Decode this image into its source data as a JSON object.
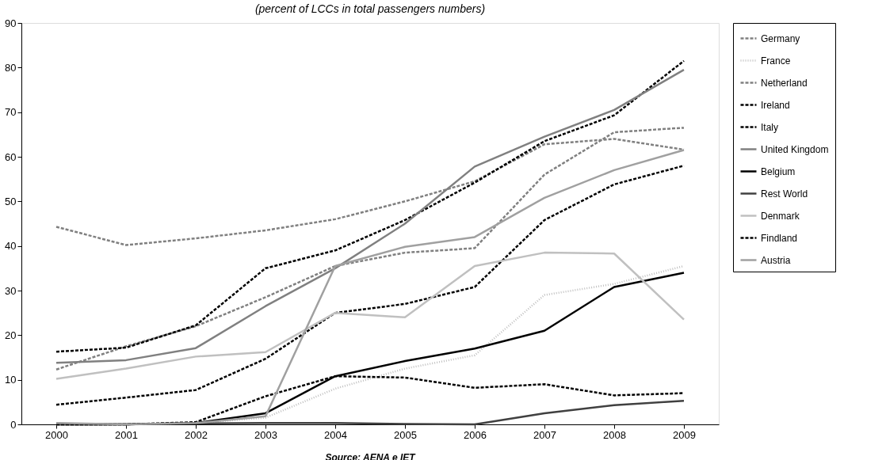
{
  "chart_data": {
    "type": "line",
    "title": "(percent of LCCs in total passengers numbers)",
    "categories": [
      "2000",
      "2001",
      "2002",
      "2003",
      "2004",
      "2005",
      "2006",
      "2007",
      "2008",
      "2009"
    ],
    "ylim": [
      0,
      90
    ],
    "yticks": [
      0,
      10,
      20,
      30,
      40,
      50,
      60,
      70,
      80,
      90
    ],
    "grid": false,
    "legend": "right",
    "marker": "none",
    "annotations": [
      "Source: AENA e IET"
    ],
    "series": [
      {
        "name": "Germany",
        "color": "#808080",
        "line_style": "dashed",
        "values": [
          12.3,
          17.5,
          22,
          28.5,
          35.5,
          38.5,
          39.5,
          56,
          65.5,
          66.5
        ]
      },
      {
        "name": "France",
        "color": "#c0c0c0",
        "line_style": "dotted",
        "values": [
          0,
          0,
          0.3,
          1.5,
          8,
          12.5,
          15.5,
          29,
          31.5,
          35.5
        ]
      },
      {
        "name": "Netherland",
        "color": "#808080",
        "line_style": "dashed",
        "values": [
          44.3,
          40.2,
          41.7,
          43.5,
          46,
          50,
          54.5,
          62.8,
          64,
          61.6
        ]
      },
      {
        "name": "Ireland",
        "color": "#000000",
        "line_style": "dashed",
        "values": [
          16.3,
          17.2,
          22.2,
          35,
          39,
          45.8,
          54.2,
          63.5,
          69.3,
          81.5
        ]
      },
      {
        "name": "Italy",
        "color": "#000000",
        "line_style": "dashed",
        "values": [
          4.4,
          6,
          7.7,
          14.7,
          25,
          27,
          30.8,
          45.8,
          53.8,
          58
        ]
      },
      {
        "name": "United Kingdom",
        "color": "#808080",
        "line_style": "solid",
        "values": [
          13.8,
          14.4,
          17.1,
          26.5,
          35,
          45,
          57.8,
          64.5,
          70.5,
          79.5
        ]
      },
      {
        "name": "Belgium",
        "color": "#000000",
        "line_style": "solid",
        "values": [
          0,
          0,
          0.3,
          2.5,
          10.8,
          14.2,
          17,
          21,
          30.8,
          34
        ]
      },
      {
        "name": "Rest World",
        "color": "#404040",
        "line_style": "solid",
        "values": [
          0,
          0,
          0.2,
          0.3,
          0.3,
          0.1,
          0,
          2.5,
          4.3,
          5.3
        ]
      },
      {
        "name": "Denmark",
        "color": "#c0c0c0",
        "line_style": "solid",
        "values": [
          10.2,
          12.5,
          15.2,
          16.2,
          25,
          24,
          35.5,
          38.5,
          38.3,
          23.5
        ]
      },
      {
        "name": "Findland",
        "color": "#000000",
        "line_style": "dashed",
        "values": [
          0,
          0,
          0.5,
          6.3,
          10.8,
          10.5,
          8.2,
          9,
          6.5,
          7
        ]
      },
      {
        "name": "Austria",
        "color": "#a0a0a0",
        "line_style": "solid",
        "values": [
          0.3,
          0,
          0.3,
          1.8,
          35.5,
          39.8,
          42,
          50.8,
          57,
          61.5
        ]
      }
    ]
  }
}
